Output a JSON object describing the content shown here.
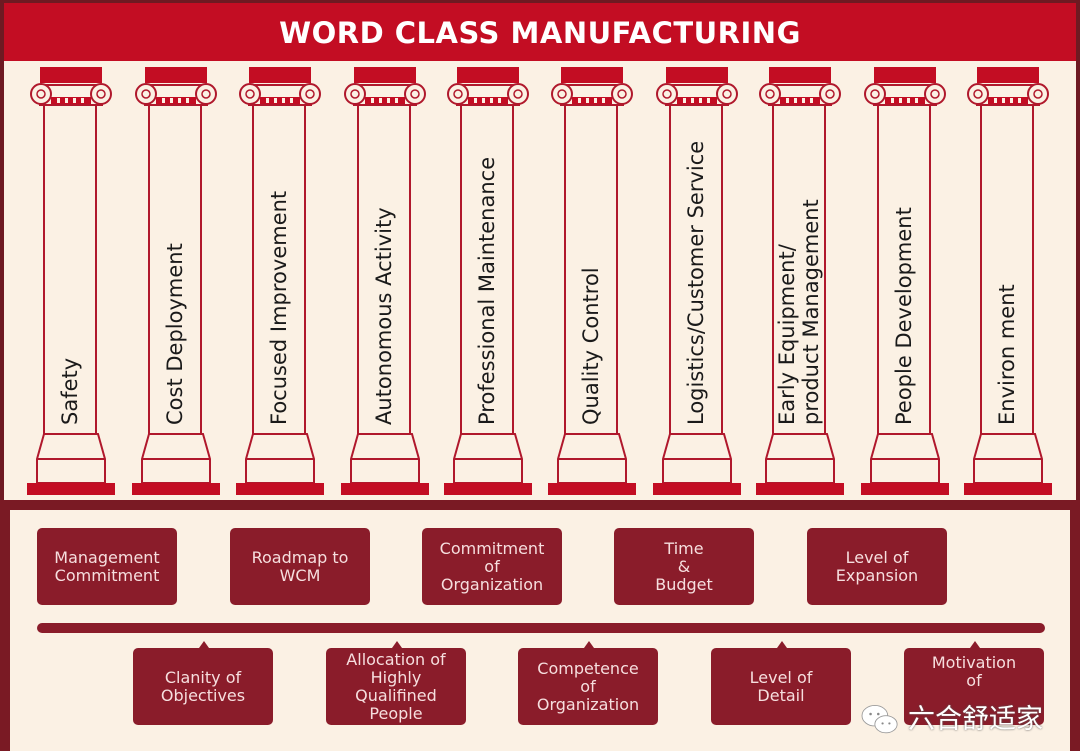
{
  "header": {
    "title": "WORD CLASS MANUFACTURING"
  },
  "colors": {
    "header_red": "#c30d23",
    "dark_red": "#8a1c2a",
    "background": "#fbf1e4"
  },
  "pillars": [
    {
      "label": "Safety"
    },
    {
      "label": "Cost Deployment"
    },
    {
      "label": "Focused Improvement"
    },
    {
      "label": "Autonomous Activity"
    },
    {
      "label": "Professional Maintenance"
    },
    {
      "label": "Quality Control"
    },
    {
      "label": "Logistics/Customer Service"
    },
    {
      "label": "Early Equipment/\nproduct Management"
    },
    {
      "label": "People Development"
    },
    {
      "label": "Environ ment"
    }
  ],
  "foundation": {
    "top_row": [
      {
        "label": "Management\nCommitment"
      },
      {
        "label": "Roadmap to\nWCM"
      },
      {
        "label": "Commitment\nof\nOrganization"
      },
      {
        "label": "Time\n&\nBudget"
      },
      {
        "label": "Level of\nExpansion"
      }
    ],
    "bottom_row": [
      {
        "label": "Clanity of\nObjectives"
      },
      {
        "label": "Allocation of\nHighly\nQualifined\nPeople"
      },
      {
        "label": "Competence\nof\nOrganization"
      },
      {
        "label": "Level of\nDetail"
      },
      {
        "label": "Motivation\nof\n"
      }
    ]
  },
  "watermark": {
    "text": "六合舒适家",
    "icon": "wechat-icon"
  }
}
